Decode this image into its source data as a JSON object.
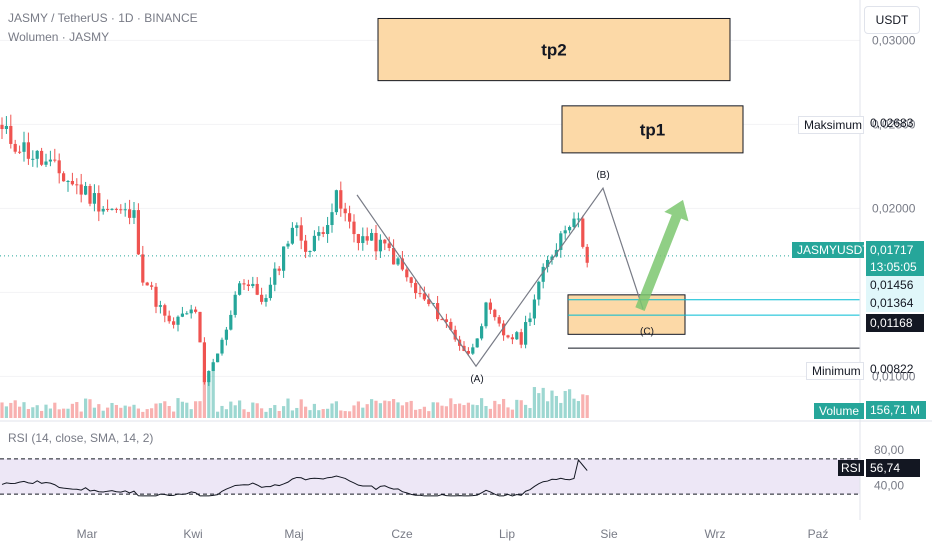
{
  "header": {
    "symbol_line": "JASMY / TetherUS · 1D · BINANCE",
    "volume_line": "Wolumen · JASMY",
    "currency_button": "USDT"
  },
  "rsi_panel": {
    "title": "RSI (14, close, SMA, 14, 2)",
    "label": "RSI",
    "value": "56,74",
    "levels": [
      "80,00",
      "40,00"
    ]
  },
  "tags": {
    "max_label": "Maksimum",
    "max_value": "0,02683",
    "min_label": "Minimum",
    "min_value": "0,00822",
    "symbol_label": "JASMYUSDT",
    "last_price": "0,01717",
    "countdown": "13:05:05",
    "level_1": "0,01456",
    "level_2": "0,01364",
    "level_3": "0,01168",
    "volume_label": "Volume",
    "volume_value": "156,71 M"
  },
  "colors": {
    "up": "#26a69a",
    "down": "#ef5350",
    "zone_fill": "#fcd9a7",
    "level_line": "#00bcd4",
    "arrow": "#7dc770",
    "rsi_band": "#ede7f6"
  },
  "chart_data": {
    "type": "candlestick",
    "x_ticks": [
      "Mar",
      "Kwi",
      "Maj",
      "Cze",
      "Lip",
      "Sie",
      "Wrz",
      "Paź"
    ],
    "y_ticks": [
      "0,03000",
      "0,02500",
      "0,02000",
      "0,01500",
      "0,01000"
    ],
    "ylim": [
      0.0074,
      0.0324
    ],
    "price_path": [
      [
        0,
        0.0245
      ],
      [
        8,
        0.023
      ],
      [
        16,
        0.0215
      ],
      [
        24,
        0.02
      ],
      [
        30,
        0.0195
      ],
      [
        32,
        0.016
      ],
      [
        38,
        0.013
      ],
      [
        44,
        0.014
      ],
      [
        46,
        0.0095
      ],
      [
        50,
        0.012
      ],
      [
        54,
        0.0158
      ],
      [
        60,
        0.0145
      ],
      [
        66,
        0.019
      ],
      [
        70,
        0.0175
      ],
      [
        76,
        0.0205
      ],
      [
        80,
        0.0185
      ],
      [
        88,
        0.0175
      ],
      [
        94,
        0.015
      ],
      [
        100,
        0.0135
      ],
      [
        106,
        0.0112
      ],
      [
        110,
        0.014
      ],
      [
        114,
        0.0125
      ],
      [
        118,
        0.0122
      ],
      [
        122,
        0.0155
      ],
      [
        127,
        0.0185
      ],
      [
        130,
        0.0198
      ],
      [
        133,
        0.0172
      ]
    ],
    "annotations": [
      {
        "label": "tp2",
        "price_top": 0.0313,
        "price_bottom": 0.0276
      },
      {
        "label": "tp1",
        "price_top": 0.0261,
        "price_bottom": 0.0233
      },
      {
        "label": "(A)",
        "price": 0.0106
      },
      {
        "label": "(B)",
        "price": 0.0212
      },
      {
        "label": "(C)",
        "price": 0.0138
      }
    ],
    "zone": {
      "price_top": 0.01485,
      "price_bottom": 0.0125
    },
    "levels": [
      0.01456,
      0.01364,
      0.01168
    ],
    "rsi": {
      "upper": 70,
      "lower": 30,
      "scale_labels": [
        80,
        40
      ],
      "current": 56.74
    }
  }
}
